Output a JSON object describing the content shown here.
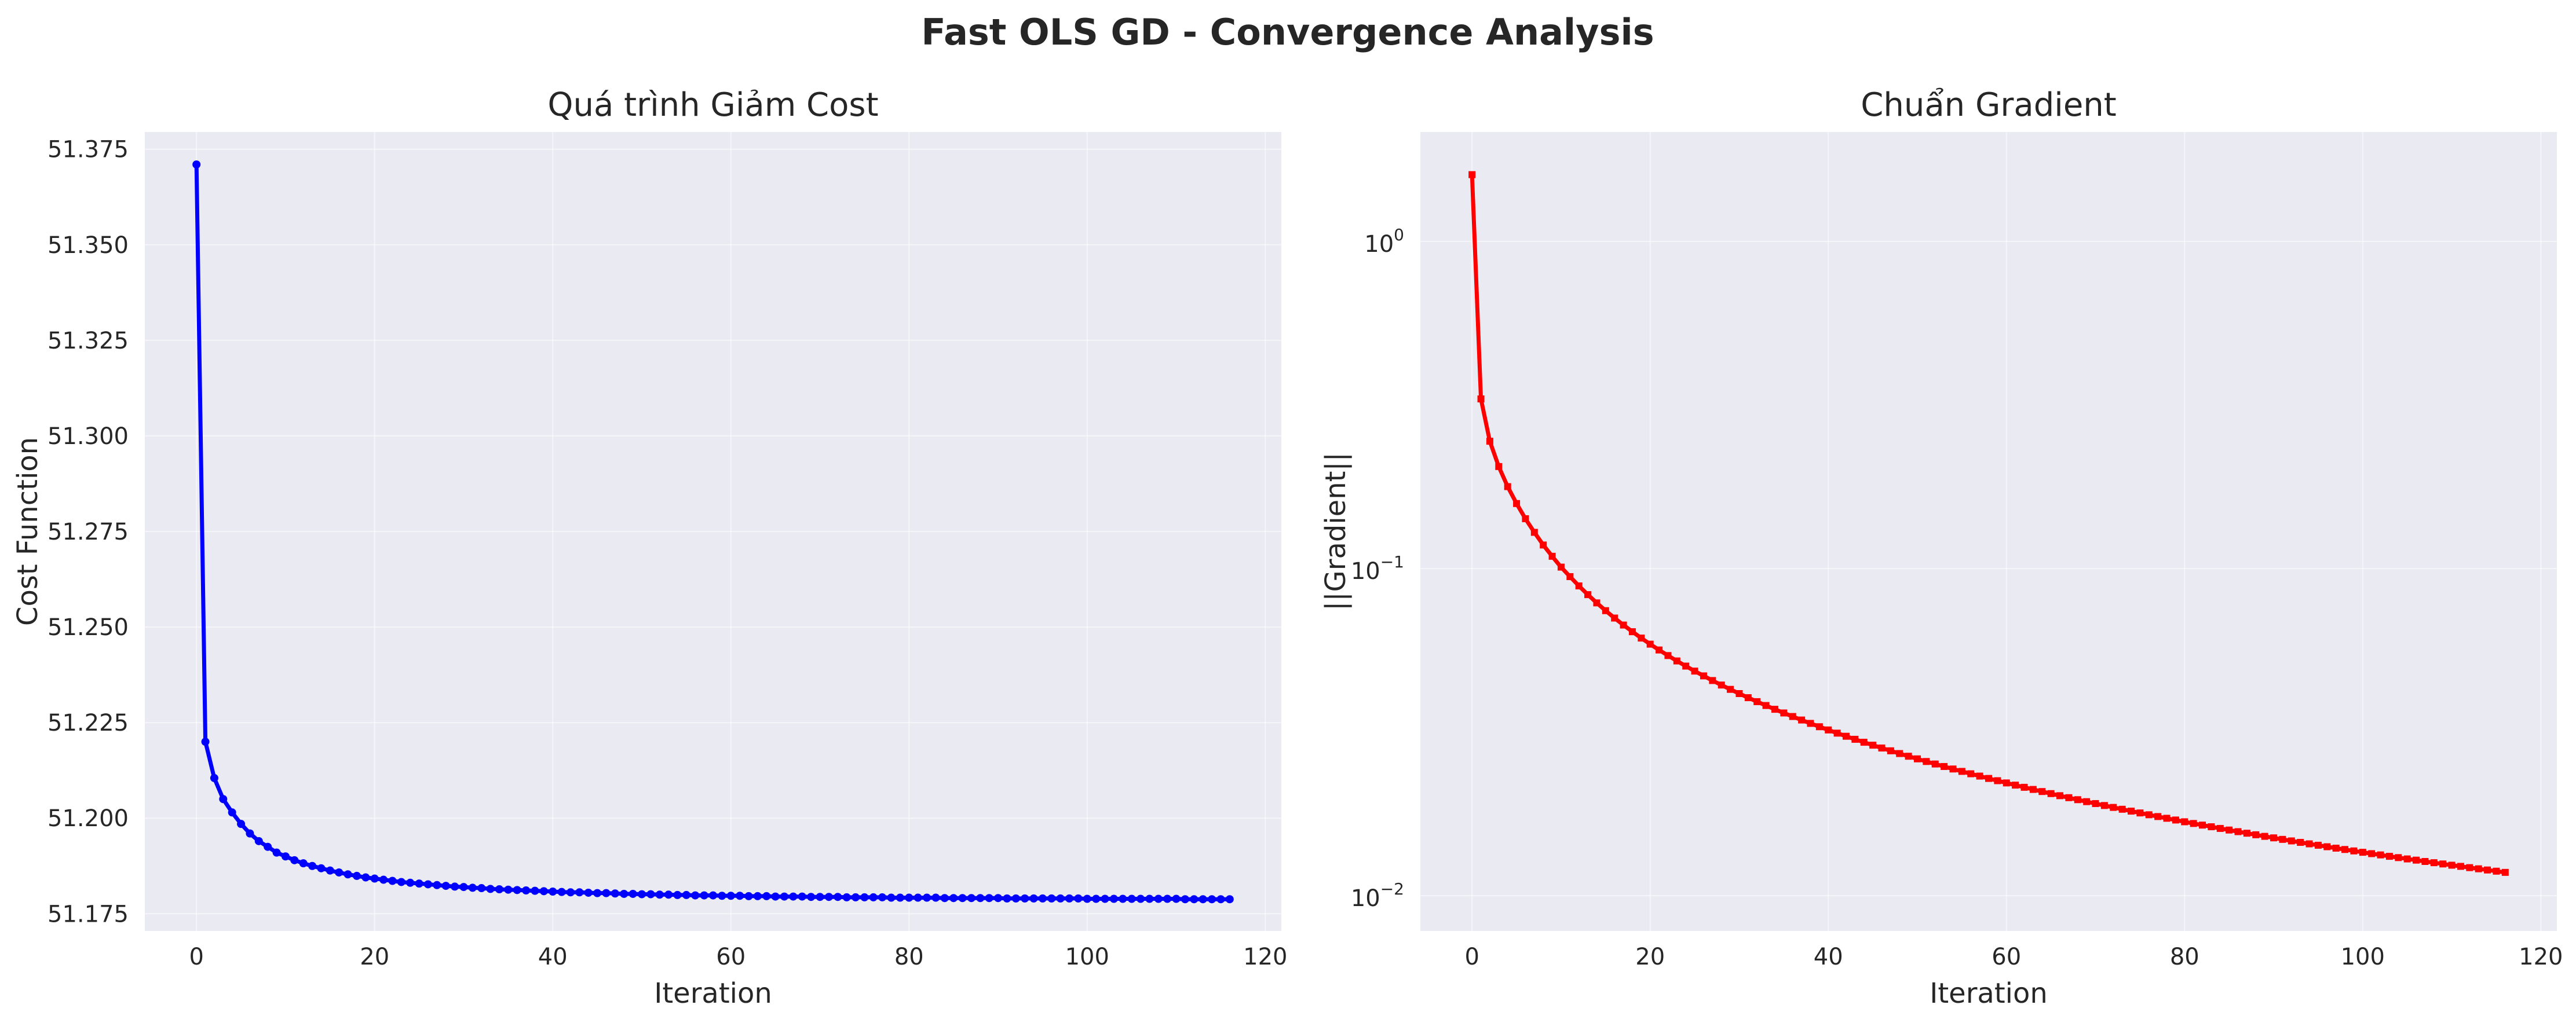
{
  "figure": {
    "title": "Fast OLS GD - Convergence Analysis"
  },
  "colors": {
    "background": "#ffffff",
    "plot_background": "#eaeaf2",
    "grid": "#ffffff",
    "text": "#262626",
    "cost_series": "#0000ff",
    "gradient_series": "#ff0000"
  },
  "chart_data": [
    {
      "type": "line",
      "title": "Quá trình Giảm Cost",
      "xlabel": "Iteration",
      "ylabel": "Cost Function",
      "xlim": [
        -5.8,
        121.8
      ],
      "ylim": [
        51.1705,
        51.3795
      ],
      "xticks": [
        0,
        20,
        40,
        60,
        80,
        100,
        120
      ],
      "xtick_labels": [
        "0",
        "20",
        "40",
        "60",
        "80",
        "100",
        "120"
      ],
      "yticks": [
        51.175,
        51.2,
        51.225,
        51.25,
        51.275,
        51.3,
        51.325,
        51.35,
        51.375
      ],
      "ytick_labels": [
        "51.175",
        "51.200",
        "51.225",
        "51.250",
        "51.275",
        "51.300",
        "51.325",
        "51.350",
        "51.375"
      ],
      "yscale": "linear",
      "grid": true,
      "marker": "circle",
      "series": [
        {
          "x_start": 0,
          "x_step": 1,
          "values": [
            51.371,
            51.22,
            51.2105,
            51.205,
            51.2015,
            51.1985,
            51.196,
            51.194,
            51.1925,
            51.191,
            51.19,
            51.189,
            51.1882,
            51.1875,
            51.1869,
            51.1863,
            51.1858,
            51.1853,
            51.1849,
            51.1845,
            51.1842,
            51.1839,
            51.1836,
            51.1833,
            51.1831,
            51.1829,
            51.1827,
            51.1825,
            51.1823,
            51.1821,
            51.182,
            51.1818,
            51.1817,
            51.1815,
            51.1814,
            51.1813,
            51.1812,
            51.1811,
            51.181,
            51.1809,
            51.1808,
            51.1807,
            51.1806,
            51.1806,
            51.1805,
            51.1804,
            51.1804,
            51.1803,
            51.1802,
            51.1802,
            51.1801,
            51.1801,
            51.18,
            51.18,
            51.1799,
            51.1799,
            51.1798,
            51.1798,
            51.1798,
            51.1797,
            51.1797,
            51.1797,
            51.1796,
            51.1796,
            51.1796,
            51.1795,
            51.1795,
            51.1795,
            51.1795,
            51.1794,
            51.1794,
            51.1794,
            51.1794,
            51.1793,
            51.1793,
            51.1793,
            51.1793,
            51.1793,
            51.1792,
            51.1792,
            51.1792,
            51.1792,
            51.1792,
            51.1792,
            51.1791,
            51.1791,
            51.1791,
            51.1791,
            51.1791,
            51.1791,
            51.1791,
            51.179,
            51.179,
            51.179,
            51.179,
            51.179,
            51.179,
            51.179,
            51.179,
            51.179,
            51.1789,
            51.1789,
            51.1789,
            51.1789,
            51.1789,
            51.1789,
            51.1789,
            51.1789,
            51.1789,
            51.1789,
            51.1789,
            51.1788,
            51.1788,
            51.1788,
            51.1788,
            51.1788,
            51.1788
          ]
        }
      ]
    },
    {
      "type": "line",
      "title": "Chuẩn Gradient",
      "xlabel": "Iteration",
      "ylabel": "||Gradient||",
      "xlim": [
        -5.8,
        121.8
      ],
      "ylim": [
        0.0078,
        2.16
      ],
      "xticks": [
        0,
        20,
        40,
        60,
        80,
        100,
        120
      ],
      "xtick_labels": [
        "0",
        "20",
        "40",
        "60",
        "80",
        "100",
        "120"
      ],
      "yticks": [
        0.01,
        0.1,
        1
      ],
      "ytick_labels": [
        {
          "base": "10",
          "exp": "−2"
        },
        {
          "base": "10",
          "exp": "−1"
        },
        {
          "base": "10",
          "exp": "0"
        }
      ],
      "yscale": "log",
      "grid": true,
      "marker": "square",
      "series": [
        {
          "x_start": 0,
          "x_step": 1,
          "values": [
            1.6,
            0.33,
            0.245,
            0.205,
            0.178,
            0.158,
            0.142,
            0.129,
            0.118,
            0.109,
            0.101,
            0.09446,
            0.08848,
            0.08321,
            0.07852,
            0.07434,
            0.07057,
            0.06718,
            0.0641,
            0.06129,
            0.05872,
            0.05636,
            0.05419,
            0.05218,
            0.05032,
            0.04858,
            0.04697,
            0.04546,
            0.04404,
            0.04272,
            0.04147,
            0.04029,
            0.03918,
            0.03813,
            0.03713,
            0.03618,
            0.03529,
            0.03443,
            0.03362,
            0.03284,
            0.0321,
            0.03139,
            0.03071,
            0.03006,
            0.02944,
            0.02884,
            0.02827,
            0.02772,
            0.02719,
            0.02668,
            0.02619,
            0.02571,
            0.02526,
            0.02482,
            0.02439,
            0.02398,
            0.02358,
            0.0232,
            0.02282,
            0.02246,
            0.02211,
            0.02177,
            0.02144,
            0.02112,
            0.02081,
            0.02051,
            0.02021,
            0.01993,
            0.01965,
            0.01938,
            0.01912,
            0.01886,
            0.01861,
            0.01837,
            0.01813,
            0.0179,
            0.01767,
            0.01745,
            0.01724,
            0.01703,
            0.01682,
            0.01662,
            0.01643,
            0.01624,
            0.01605,
            0.01587,
            0.01569,
            0.01552,
            0.01535,
            0.01518,
            0.01502,
            0.01486,
            0.0147,
            0.01455,
            0.0144,
            0.01426,
            0.01411,
            0.01397,
            0.01384,
            0.0137,
            0.01357,
            0.01344,
            0.01332,
            0.01319,
            0.01307,
            0.01295,
            0.01284,
            0.01272,
            0.01261,
            0.0125,
            0.01239,
            0.01229,
            0.01218,
            0.01208,
            0.01198,
            0.01188,
            0.01178
          ]
        }
      ]
    }
  ]
}
